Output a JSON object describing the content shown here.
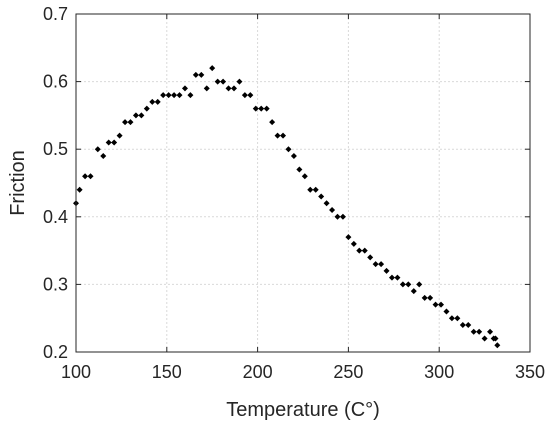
{
  "chart_data": {
    "type": "scatter",
    "xlabel": "Temperature (C°)",
    "ylabel": "Friction",
    "xlim": [
      100,
      350
    ],
    "ylim": [
      0.2,
      0.7
    ],
    "xticks": [
      "100",
      "150",
      "200",
      "250",
      "300",
      "350"
    ],
    "yticks": [
      "0.2",
      "0.3",
      "0.4",
      "0.5",
      "0.6",
      "0.7"
    ],
    "grid": true,
    "marker": "diamond",
    "color": "#000000",
    "points": [
      [
        100,
        0.42
      ],
      [
        102,
        0.44
      ],
      [
        105,
        0.46
      ],
      [
        108,
        0.46
      ],
      [
        112,
        0.5
      ],
      [
        115,
        0.49
      ],
      [
        118,
        0.51
      ],
      [
        121,
        0.51
      ],
      [
        124,
        0.52
      ],
      [
        127,
        0.54
      ],
      [
        130,
        0.54
      ],
      [
        133,
        0.55
      ],
      [
        136,
        0.55
      ],
      [
        139,
        0.56
      ],
      [
        142,
        0.57
      ],
      [
        145,
        0.57
      ],
      [
        148,
        0.58
      ],
      [
        151,
        0.58
      ],
      [
        154,
        0.58
      ],
      [
        157,
        0.58
      ],
      [
        160,
        0.59
      ],
      [
        163,
        0.58
      ],
      [
        166,
        0.61
      ],
      [
        169,
        0.61
      ],
      [
        172,
        0.59
      ],
      [
        175,
        0.62
      ],
      [
        178,
        0.6
      ],
      [
        181,
        0.6
      ],
      [
        184,
        0.59
      ],
      [
        187,
        0.59
      ],
      [
        190,
        0.6
      ],
      [
        193,
        0.58
      ],
      [
        196,
        0.58
      ],
      [
        199,
        0.56
      ],
      [
        202,
        0.56
      ],
      [
        205,
        0.56
      ],
      [
        208,
        0.54
      ],
      [
        211,
        0.52
      ],
      [
        214,
        0.52
      ],
      [
        217,
        0.5
      ],
      [
        220,
        0.49
      ],
      [
        223,
        0.47
      ],
      [
        226,
        0.46
      ],
      [
        229,
        0.44
      ],
      [
        232,
        0.44
      ],
      [
        235,
        0.43
      ],
      [
        238,
        0.42
      ],
      [
        241,
        0.41
      ],
      [
        244,
        0.4
      ],
      [
        247,
        0.4
      ],
      [
        250,
        0.37
      ],
      [
        253,
        0.36
      ],
      [
        256,
        0.35
      ],
      [
        259,
        0.35
      ],
      [
        262,
        0.34
      ],
      [
        265,
        0.33
      ],
      [
        268,
        0.33
      ],
      [
        271,
        0.32
      ],
      [
        274,
        0.31
      ],
      [
        277,
        0.31
      ],
      [
        280,
        0.3
      ],
      [
        283,
        0.3
      ],
      [
        286,
        0.29
      ],
      [
        289,
        0.3
      ],
      [
        292,
        0.28
      ],
      [
        295,
        0.28
      ],
      [
        298,
        0.27
      ],
      [
        301,
        0.27
      ],
      [
        304,
        0.26
      ],
      [
        307,
        0.25
      ],
      [
        310,
        0.25
      ],
      [
        313,
        0.24
      ],
      [
        316,
        0.24
      ],
      [
        319,
        0.23
      ],
      [
        322,
        0.23
      ],
      [
        325,
        0.22
      ],
      [
        328,
        0.23
      ],
      [
        330,
        0.22
      ],
      [
        331,
        0.22
      ],
      [
        332,
        0.21
      ]
    ]
  }
}
